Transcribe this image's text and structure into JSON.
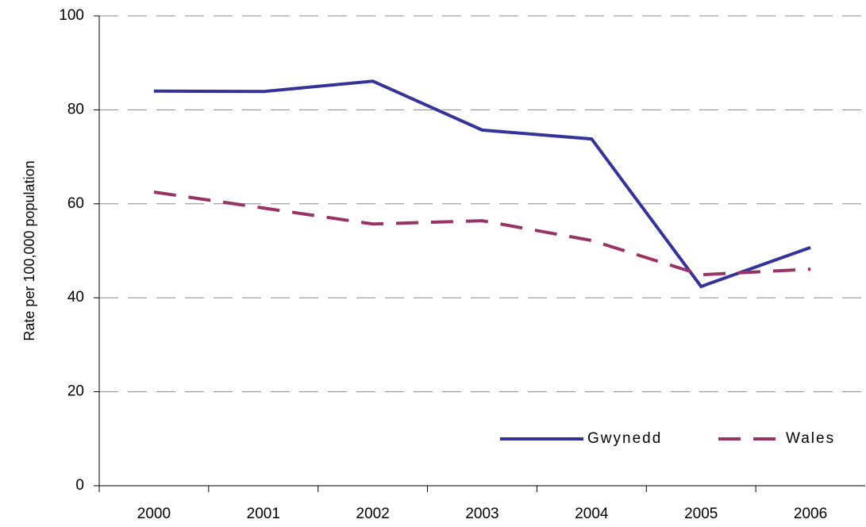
{
  "chart_data": {
    "type": "line",
    "y_label": "Rate per 100,000 population",
    "categories": [
      "2000",
      "2001",
      "2002",
      "2003",
      "2004",
      "2005",
      "2006"
    ],
    "series": [
      {
        "name": "Gwynedd",
        "color": "#333399",
        "linestyle": "solid",
        "values": [
          84,
          83.9,
          86.1,
          75.7,
          73.8,
          42.4,
          50.7
        ]
      },
      {
        "name": "Wales",
        "color": "#993366",
        "linestyle": "dashed",
        "values": [
          62.5,
          59.1,
          55.7,
          56.4,
          52.2,
          44.9,
          46.1
        ]
      }
    ],
    "ylim": [
      0,
      100
    ],
    "yticks": [
      0,
      20,
      40,
      60,
      80,
      100
    ],
    "grid": true,
    "legend": "lower right"
  }
}
